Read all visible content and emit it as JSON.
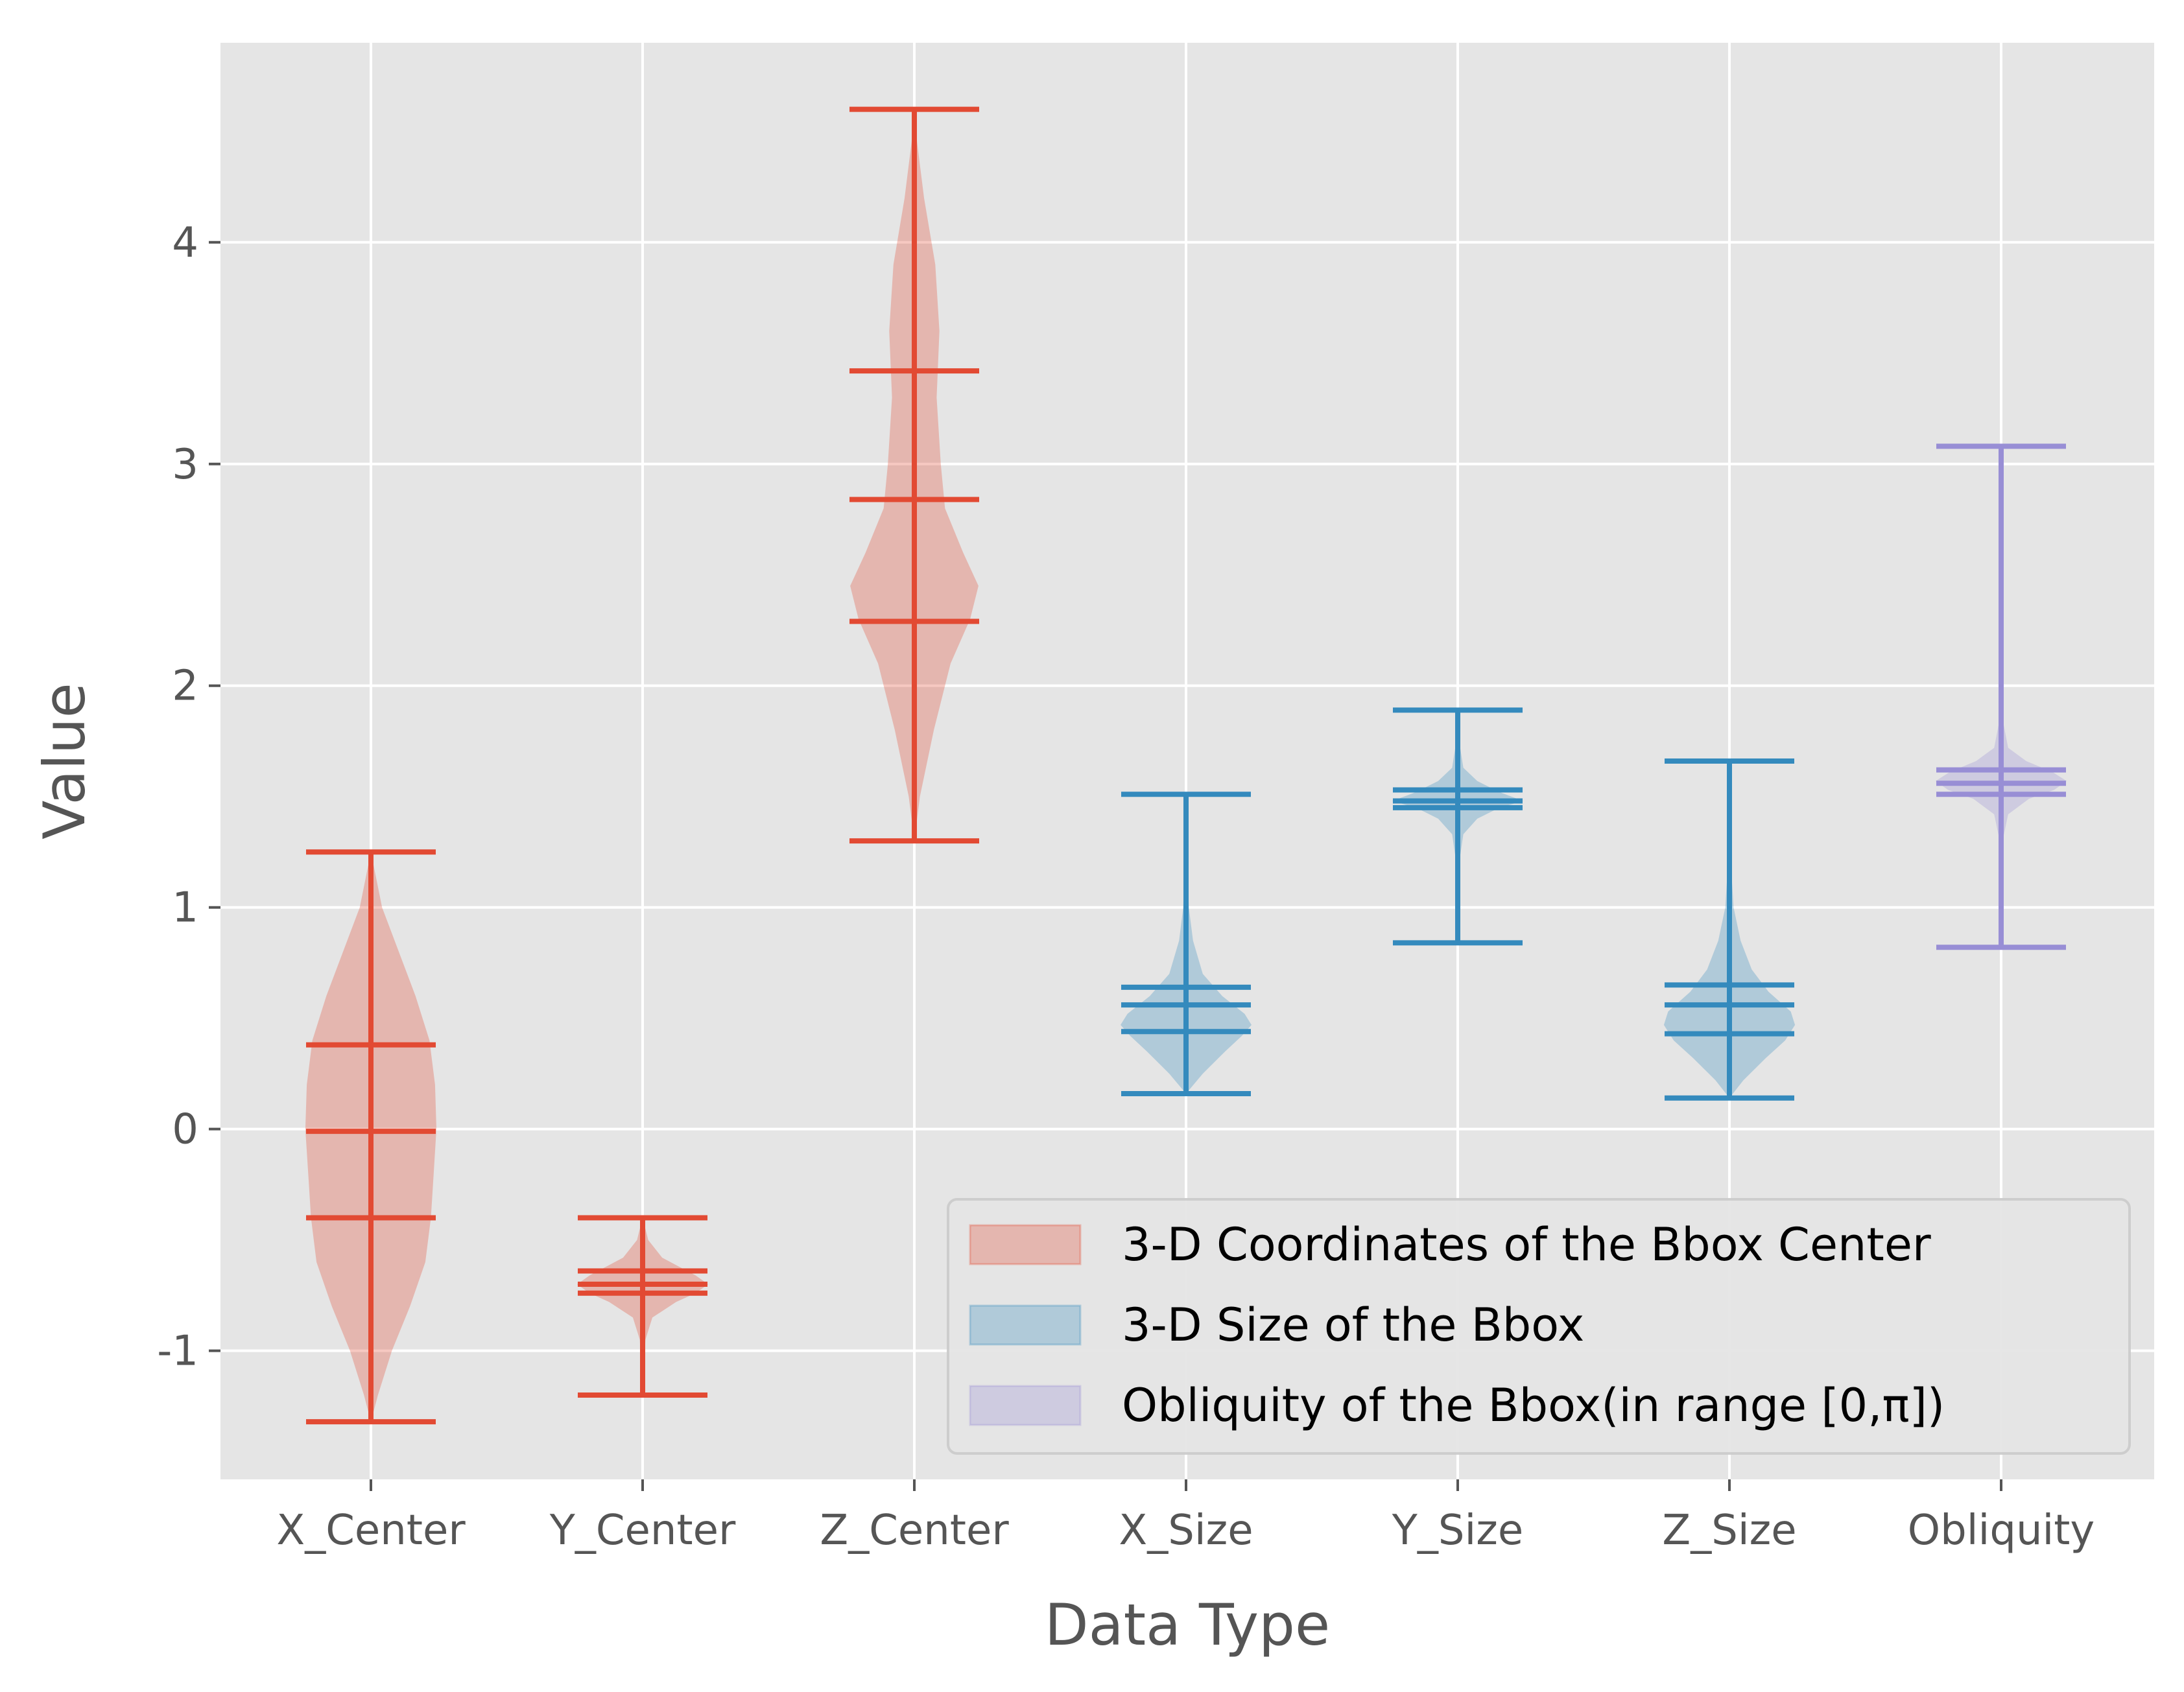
{
  "chart_data": {
    "type": "violin",
    "title": "",
    "xlabel": "Data Type",
    "ylabel": "Value",
    "ylim": [
      -1.58,
      4.9
    ],
    "yticks": [
      -1,
      0,
      1,
      2,
      3,
      4
    ],
    "grid": true,
    "legend_position": "bottom-right",
    "categories": [
      "X_Center",
      "Y_Center",
      "Z_Center",
      "X_Size",
      "Y_Size",
      "Z_Size",
      "Obliquity"
    ],
    "groups": [
      {
        "name": "3-D Coordinates of the Bbox Center",
        "color": "#E24A33",
        "members": [
          "X_Center",
          "Y_Center",
          "Z_Center"
        ]
      },
      {
        "name": "3-D Size of the Bbox",
        "color": "#348ABD",
        "members": [
          "X_Size",
          "Y_Size",
          "Z_Size"
        ]
      },
      {
        "name": "Obliquity of the Bbox(in range [0,π])",
        "color": "#988ED5",
        "members": [
          "Obliquity"
        ]
      }
    ],
    "violins": [
      {
        "category": "X_Center",
        "group": 0,
        "min": -1.32,
        "max": 1.25,
        "q1": -0.4,
        "median": -0.01,
        "q3": 0.38,
        "profile": [
          [
            -1.32,
            0.0
          ],
          [
            -1.2,
            0.05
          ],
          [
            -1.0,
            0.15
          ],
          [
            -0.8,
            0.28
          ],
          [
            -0.6,
            0.39
          ],
          [
            -0.4,
            0.43
          ],
          [
            -0.2,
            0.45
          ],
          [
            0.0,
            0.47
          ],
          [
            0.2,
            0.46
          ],
          [
            0.4,
            0.42
          ],
          [
            0.6,
            0.32
          ],
          [
            0.8,
            0.2
          ],
          [
            1.0,
            0.08
          ],
          [
            1.25,
            0.0
          ]
        ]
      },
      {
        "category": "Y_Center",
        "group": 0,
        "min": -1.2,
        "max": -0.4,
        "q1": -0.74,
        "median": -0.7,
        "q3": -0.64,
        "profile": [
          [
            -1.2,
            0.0
          ],
          [
            -0.95,
            0.02
          ],
          [
            -0.85,
            0.07
          ],
          [
            -0.78,
            0.24
          ],
          [
            -0.74,
            0.38
          ],
          [
            -0.7,
            0.47
          ],
          [
            -0.66,
            0.38
          ],
          [
            -0.62,
            0.26
          ],
          [
            -0.58,
            0.14
          ],
          [
            -0.5,
            0.04
          ],
          [
            -0.4,
            0.0
          ]
        ]
      },
      {
        "category": "Z_Center",
        "group": 0,
        "min": 1.3,
        "max": 4.6,
        "q1": 2.29,
        "median": 2.84,
        "q3": 3.42,
        "profile": [
          [
            1.3,
            0.0
          ],
          [
            1.5,
            0.04
          ],
          [
            1.8,
            0.14
          ],
          [
            2.1,
            0.26
          ],
          [
            2.3,
            0.4
          ],
          [
            2.45,
            0.46
          ],
          [
            2.6,
            0.35
          ],
          [
            2.8,
            0.22
          ],
          [
            3.0,
            0.19
          ],
          [
            3.3,
            0.16
          ],
          [
            3.6,
            0.18
          ],
          [
            3.9,
            0.15
          ],
          [
            4.2,
            0.07
          ],
          [
            4.45,
            0.02
          ],
          [
            4.6,
            0.0
          ]
        ]
      },
      {
        "category": "X_Size",
        "group": 1,
        "min": 0.16,
        "max": 1.51,
        "q1": 0.44,
        "median": 0.56,
        "q3": 0.64,
        "profile": [
          [
            0.16,
            0.0
          ],
          [
            0.25,
            0.12
          ],
          [
            0.35,
            0.28
          ],
          [
            0.42,
            0.4
          ],
          [
            0.47,
            0.47
          ],
          [
            0.52,
            0.42
          ],
          [
            0.6,
            0.26
          ],
          [
            0.7,
            0.12
          ],
          [
            0.85,
            0.05
          ],
          [
            1.0,
            0.02
          ],
          [
            1.2,
            0.01
          ],
          [
            1.51,
            0.0
          ]
        ]
      },
      {
        "category": "Y_Size",
        "group": 1,
        "min": 0.84,
        "max": 1.89,
        "q1": 1.45,
        "median": 1.48,
        "q3": 1.53,
        "profile": [
          [
            0.84,
            0.0
          ],
          [
            1.2,
            0.01
          ],
          [
            1.33,
            0.04
          ],
          [
            1.4,
            0.14
          ],
          [
            1.45,
            0.3
          ],
          [
            1.48,
            0.47
          ],
          [
            1.52,
            0.3
          ],
          [
            1.57,
            0.14
          ],
          [
            1.63,
            0.04
          ],
          [
            1.75,
            0.01
          ],
          [
            1.89,
            0.0
          ]
        ]
      },
      {
        "category": "Z_Size",
        "group": 1,
        "min": 0.14,
        "max": 1.66,
        "q1": 0.43,
        "median": 0.56,
        "q3": 0.65,
        "profile": [
          [
            0.14,
            0.0
          ],
          [
            0.22,
            0.1
          ],
          [
            0.32,
            0.26
          ],
          [
            0.4,
            0.4
          ],
          [
            0.47,
            0.47
          ],
          [
            0.53,
            0.44
          ],
          [
            0.62,
            0.28
          ],
          [
            0.72,
            0.16
          ],
          [
            0.85,
            0.08
          ],
          [
            1.0,
            0.03
          ],
          [
            1.2,
            0.01
          ],
          [
            1.66,
            0.0
          ]
        ]
      },
      {
        "category": "Obliquity",
        "group": 2,
        "min": 0.82,
        "max": 3.08,
        "q1": 1.51,
        "median": 1.56,
        "q3": 1.62,
        "profile": [
          [
            0.82,
            0.0
          ],
          [
            1.3,
            0.01
          ],
          [
            1.42,
            0.05
          ],
          [
            1.49,
            0.2
          ],
          [
            1.53,
            0.38
          ],
          [
            1.57,
            0.47
          ],
          [
            1.61,
            0.37
          ],
          [
            1.66,
            0.18
          ],
          [
            1.72,
            0.05
          ],
          [
            1.85,
            0.01
          ],
          [
            3.08,
            0.0
          ]
        ]
      }
    ]
  }
}
